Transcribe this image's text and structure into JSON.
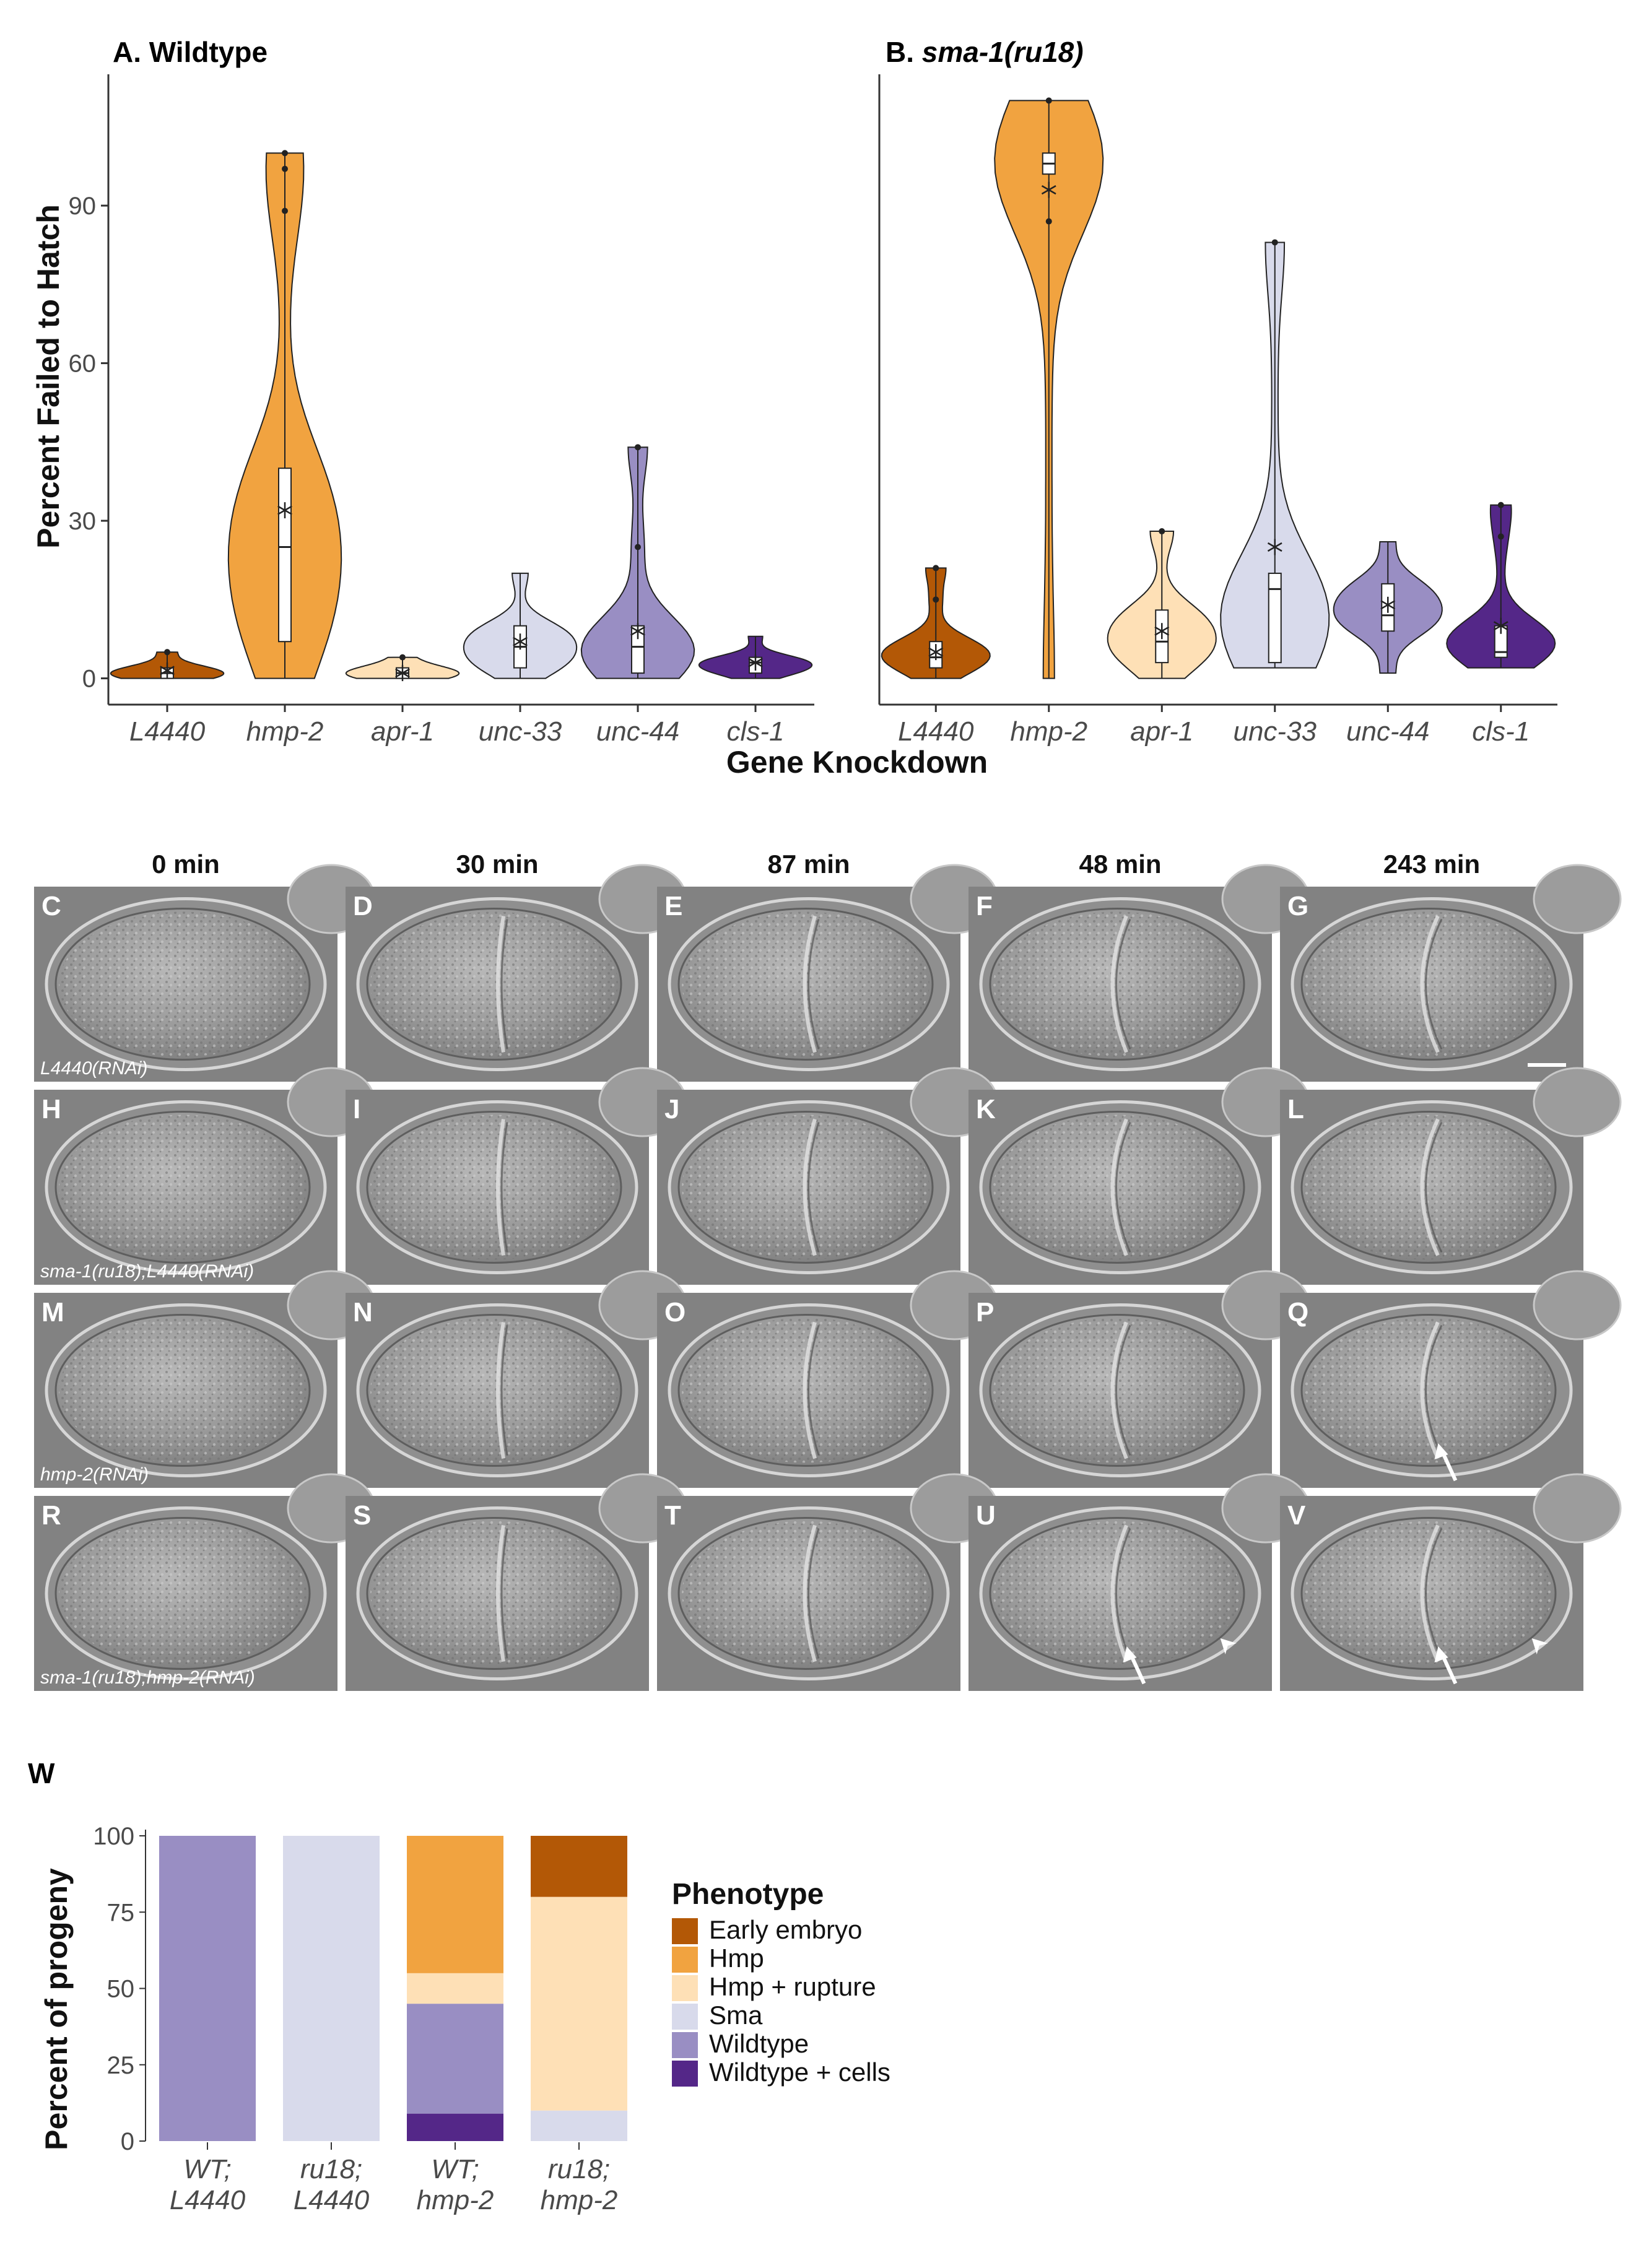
{
  "chart_data": [
    {
      "type": "violin",
      "panel": "A. Wildtype",
      "ylabel": "Percent Failed to Hatch",
      "ylim": [
        -5,
        115
      ],
      "yticks": [
        0,
        30,
        60,
        90
      ],
      "categories": [
        "L4440",
        "hmp-2",
        "apr-1",
        "unc-33",
        "unc-44",
        "cls-1"
      ],
      "colors": [
        "#b35806",
        "#f1a340",
        "#fee0b6",
        "#d8daeb",
        "#998ec3",
        "#542788"
      ],
      "series": [
        {
          "category": "L4440",
          "min": 0,
          "max": 5,
          "q1": 0,
          "median": 1,
          "q3": 2,
          "mean": 1.5,
          "points": [
            5
          ]
        },
        {
          "category": "hmp-2",
          "min": 0,
          "max": 100,
          "q1": 7,
          "median": 25,
          "q3": 40,
          "mean": 32,
          "points": [
            100,
            97,
            89
          ]
        },
        {
          "category": "apr-1",
          "min": 0,
          "max": 4,
          "q1": 0,
          "median": 1,
          "q3": 2,
          "mean": 1,
          "points": [
            4
          ]
        },
        {
          "category": "unc-33",
          "min": 0,
          "max": 20,
          "q1": 2,
          "median": 6,
          "q3": 10,
          "mean": 7,
          "points": []
        },
        {
          "category": "unc-44",
          "min": 0,
          "max": 44,
          "q1": 1,
          "median": 6,
          "q3": 10,
          "mean": 9,
          "points": [
            44,
            25
          ]
        },
        {
          "category": "cls-1",
          "min": 0,
          "max": 8,
          "q1": 1,
          "median": 3,
          "q3": 4,
          "mean": 3,
          "points": []
        }
      ]
    },
    {
      "type": "violin",
      "panel_prefix": "B.",
      "panel": "sma-1(ru18)",
      "ylim": [
        -5,
        115
      ],
      "categories": [
        "L4440",
        "hmp-2",
        "apr-1",
        "unc-33",
        "unc-44",
        "cls-1"
      ],
      "colors": [
        "#b35806",
        "#f1a340",
        "#fee0b6",
        "#d8daeb",
        "#998ec3",
        "#542788"
      ],
      "series": [
        {
          "category": "L4440",
          "min": 0,
          "max": 21,
          "q1": 2,
          "median": 4,
          "q3": 7,
          "mean": 5,
          "points": [
            21,
            15
          ]
        },
        {
          "category": "hmp-2",
          "min": 0,
          "max": 110,
          "q1": 96,
          "median": 98,
          "q3": 100,
          "mean": 93,
          "points": [
            110,
            87
          ]
        },
        {
          "category": "apr-1",
          "min": 0,
          "max": 28,
          "q1": 3,
          "median": 7,
          "q3": 13,
          "mean": 9,
          "points": [
            28
          ]
        },
        {
          "category": "unc-33",
          "min": 2,
          "max": 83,
          "q1": 3,
          "median": 17,
          "q3": 20,
          "mean": 25,
          "points": [
            83
          ]
        },
        {
          "category": "unc-44",
          "min": 1,
          "max": 26,
          "q1": 9,
          "median": 12,
          "q3": 18,
          "mean": 14,
          "points": []
        },
        {
          "category": "cls-1",
          "min": 2,
          "max": 33,
          "q1": 4,
          "median": 5,
          "q3": 10,
          "mean": 10,
          "points": [
            33,
            27
          ]
        }
      ]
    },
    {
      "type": "bar",
      "stacked": true,
      "panel": "W",
      "ylabel": "Percent of progeny",
      "ylim": [
        0,
        100
      ],
      "yticks": [
        0,
        25,
        50,
        75,
        100
      ],
      "categories": [
        [
          "WT;",
          "L4440"
        ],
        [
          "ru18;",
          "L4440"
        ],
        [
          "WT;",
          "hmp-2"
        ],
        [
          "ru18;",
          "hmp-2"
        ]
      ],
      "legend_title": "Phenotype",
      "series": [
        {
          "name": "Early embryo",
          "color": "#b35806",
          "values": [
            0,
            0,
            0,
            20
          ]
        },
        {
          "name": "Hmp",
          "color": "#f1a340",
          "values": [
            0,
            0,
            45,
            0
          ]
        },
        {
          "name": "Hmp + rupture",
          "color": "#fee0b6",
          "values": [
            0,
            0,
            10,
            70
          ]
        },
        {
          "name": "Sma",
          "color": "#d8daeb",
          "values": [
            0,
            100,
            0,
            10
          ]
        },
        {
          "name": "Wildtype",
          "color": "#998ec3",
          "values": [
            100,
            0,
            36,
            0
          ]
        },
        {
          "name": "Wildtype + cells",
          "color": "#542788",
          "values": [
            0,
            0,
            9,
            0
          ]
        }
      ]
    }
  ],
  "shared_xlabel": "Gene Knockdown",
  "micrographs": {
    "time_labels": [
      "0 min",
      "30 min",
      "87 min",
      "48 min",
      "243 min"
    ],
    "rows": [
      {
        "letters": [
          "C",
          "D",
          "E",
          "F",
          "G"
        ],
        "caption": "L4440(RNAi)",
        "scale_bar": true,
        "arrows": [],
        "arrowheads": []
      },
      {
        "letters": [
          "H",
          "I",
          "J",
          "K",
          "L"
        ],
        "caption": "sma-1(ru18);L4440(RNAi)",
        "scale_bar": false,
        "arrows": [],
        "arrowheads": []
      },
      {
        "letters": [
          "M",
          "N",
          "O",
          "P",
          "Q"
        ],
        "caption": "hmp-2(RNAi)",
        "scale_bar": false,
        "arrows": [
          4
        ],
        "arrowheads": []
      },
      {
        "letters": [
          "R",
          "S",
          "T",
          "U",
          "V"
        ],
        "caption": "sma-1(ru18);hmp-2(RNAi)",
        "scale_bar": false,
        "arrows": [
          3,
          4
        ],
        "arrowheads": [
          3,
          4
        ]
      }
    ]
  }
}
